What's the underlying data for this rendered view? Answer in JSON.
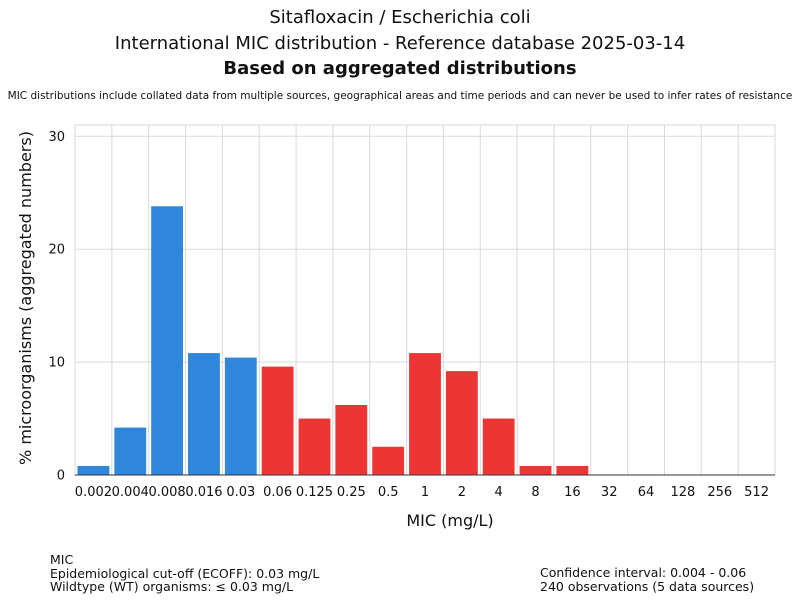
{
  "header": {
    "title_line1": "Sitafloxacin / Escherichia coli",
    "title_line2": "International MIC distribution - Reference database 2025-03-14",
    "title_line3": "Based on aggregated distributions",
    "note": "MIC distributions include collated data from multiple sources, geographical areas and time periods and can never be used to infer rates of resistance"
  },
  "chart_data": {
    "type": "bar",
    "xlabel": "MIC (mg/L)",
    "ylabel": "% microorganisms (aggregated numbers)",
    "categories": [
      "0.002",
      "0.004",
      "0.008",
      "0.016",
      "0.03",
      "0.06",
      "0.125",
      "0.25",
      "0.5",
      "1",
      "2",
      "4",
      "8",
      "16",
      "32",
      "64",
      "128",
      "256",
      "512"
    ],
    "values": [
      0.8,
      4.2,
      23.8,
      10.8,
      10.4,
      9.6,
      5.0,
      6.2,
      2.5,
      10.8,
      9.2,
      5.0,
      0.8,
      0.8,
      0,
      0,
      0,
      0,
      0
    ],
    "ylim": [
      0,
      31
    ],
    "yticks": [
      0,
      10,
      20,
      30
    ],
    "grid": true,
    "colors": {
      "wildtype": "#2f86db",
      "non_wildtype": "#ee3535"
    },
    "ecoff_index": 4
  },
  "footer": {
    "left": [
      "MIC",
      "Epidemiological cut-off (ECOFF): 0.03 mg/L",
      "Wildtype (WT) organisms: ≤ 0.03 mg/L"
    ],
    "right": [
      "Confidence interval: 0.004 - 0.06",
      "240 observations (5 data sources)"
    ]
  }
}
